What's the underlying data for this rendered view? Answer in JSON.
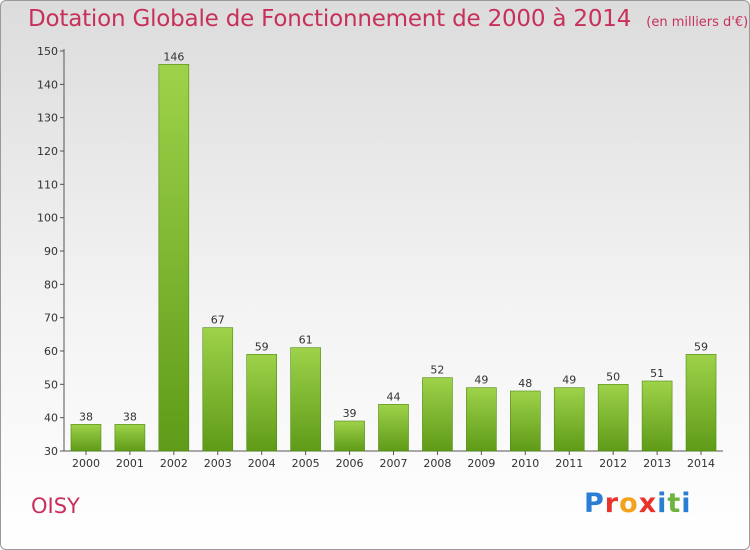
{
  "title": "Dotation Globale de Fonctionnement de 2000 à 2014",
  "unit_label": "(en milliers d'€)",
  "commune": "OISY",
  "logo": {
    "text": "Proxiti",
    "letter_colors": [
      "#2a7fd4",
      "#e8332a",
      "#f2a21b",
      "#e8332a",
      "#2a7fd4",
      "#6db33f",
      "#2a7fd4"
    ]
  },
  "colors": {
    "accent": "#c8305a",
    "bar_light": "#9ed24a",
    "bar_dark": "#5f9b18"
  },
  "chart_data": {
    "type": "bar",
    "title": "Dotation Globale de Fonctionnement de 2000 à 2014",
    "categories": [
      "2000",
      "2001",
      "2002",
      "2003",
      "2004",
      "2005",
      "2006",
      "2007",
      "2008",
      "2009",
      "2010",
      "2011",
      "2012",
      "2013",
      "2014"
    ],
    "values": [
      38,
      38,
      146,
      67,
      59,
      61,
      39,
      44,
      52,
      49,
      48,
      49,
      50,
      51,
      59
    ],
    "ylim": [
      30,
      150
    ],
    "yticks": [
      30,
      40,
      50,
      60,
      70,
      80,
      90,
      100,
      110,
      120,
      130,
      140,
      150
    ],
    "grid": false,
    "data_labels": true
  }
}
